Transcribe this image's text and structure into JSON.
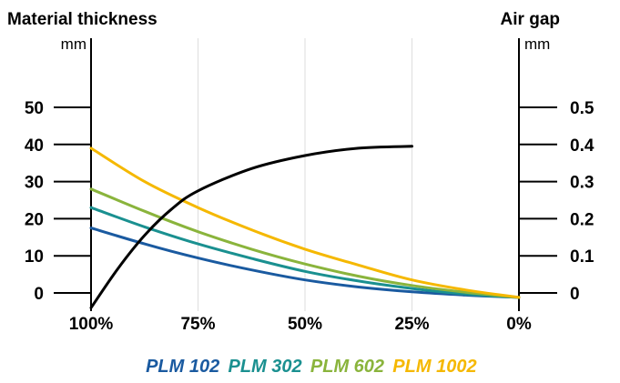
{
  "chart_data": {
    "type": "line",
    "left_axis": {
      "title": "Material thickness",
      "unit": "mm",
      "ticks": [
        0,
        10,
        20,
        30,
        40,
        50
      ],
      "tick_labels": [
        "0",
        "10",
        "20",
        "30",
        "40",
        "50"
      ],
      "ylim": [
        0,
        60
      ]
    },
    "right_axis": {
      "title": "Air gap",
      "unit": "mm",
      "ticks": [
        0,
        0.1,
        0.2,
        0.3,
        0.4,
        0.5
      ],
      "tick_labels": [
        "0",
        "0.1",
        "0.2",
        "0.3",
        "0.4",
        "0.5"
      ],
      "ylim": [
        0,
        0.6
      ]
    },
    "x_axis": {
      "ticks": [
        100,
        75,
        50,
        25,
        0
      ],
      "tick_labels": [
        "100%",
        "75%",
        "50%",
        "25%",
        "0%"
      ],
      "xlim": [
        100,
        0
      ]
    },
    "grid": true,
    "legend_position": "bottom-center",
    "series": [
      {
        "name": "PLM 102",
        "color": "#1a5aa0",
        "axis": "left",
        "x": [
          100,
          87.5,
          75,
          62.5,
          50,
          37.5,
          25,
          12.5,
          0
        ],
        "y": [
          17.5,
          13.2,
          9.4,
          6.2,
          3.5,
          1.6,
          0.3,
          -0.6,
          -1.2
        ]
      },
      {
        "name": "PLM 302",
        "color": "#1a9090",
        "axis": "left",
        "x": [
          100,
          87.5,
          75,
          62.5,
          50,
          37.5,
          25,
          12.5,
          0
        ],
        "y": [
          23,
          17.8,
          13.2,
          9.3,
          5.8,
          3.2,
          1.2,
          -0.3,
          -1.2
        ]
      },
      {
        "name": "PLM 602",
        "color": "#8ab43c",
        "axis": "left",
        "x": [
          100,
          87.5,
          75,
          62.5,
          50,
          37.5,
          25,
          12.5,
          0
        ],
        "y": [
          28,
          22,
          16.5,
          11.8,
          7.8,
          4.5,
          2,
          0.2,
          -1.2
        ]
      },
      {
        "name": "PLM 1002",
        "color": "#f5b800",
        "axis": "left",
        "x": [
          100,
          87.5,
          75,
          62.5,
          50,
          37.5,
          25,
          12.5,
          0
        ],
        "y": [
          39,
          30,
          23,
          17,
          11.8,
          7.5,
          3.5,
          0.8,
          -1.2
        ]
      },
      {
        "color": "#000000",
        "axis": "right",
        "x": [
          100,
          93.75,
          87.5,
          81.25,
          75,
          62.5,
          50,
          37.5,
          25
        ],
        "y": [
          -0.04,
          0.065,
          0.155,
          0.225,
          0.275,
          0.335,
          0.37,
          0.39,
          0.395
        ]
      }
    ]
  }
}
